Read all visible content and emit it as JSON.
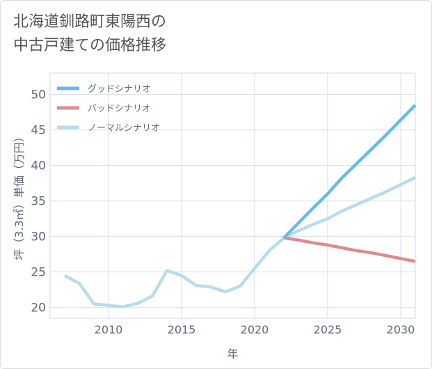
{
  "title": {
    "line1": "北海道釧路町東陽西の",
    "line2": "中古戸建ての価格推移"
  },
  "chart_data": {
    "type": "line",
    "xlabel": "年",
    "ylabel": "坪（3.3㎡）単価（万円）",
    "xlim": [
      2006,
      2031
    ],
    "ylim": [
      18.5,
      53
    ],
    "xticks": [
      2010,
      2015,
      2020,
      2025,
      2030
    ],
    "yticks": [
      20,
      25,
      30,
      35,
      40,
      45,
      50
    ],
    "grid": true,
    "legend_position": "top-left",
    "series": [
      {
        "name": "グッドシナリオ",
        "color": "#6bb8ea",
        "x": [
          2022,
          2023,
          2024,
          2025,
          2026,
          2027,
          2028,
          2029,
          2030,
          2031
        ],
        "y": [
          29.8,
          31.9,
          34.0,
          36.0,
          38.3,
          40.3,
          42.3,
          44.3,
          46.4,
          48.5
        ]
      },
      {
        "name": "バッドシナリオ",
        "color": "#dd8a92",
        "x": [
          2022,
          2023,
          2024,
          2025,
          2026,
          2027,
          2028,
          2029,
          2030,
          2031
        ],
        "y": [
          29.8,
          29.5,
          29.1,
          28.8,
          28.4,
          28.0,
          27.7,
          27.3,
          26.9,
          26.5
        ]
      },
      {
        "name": "ノーマルシナリオ",
        "color": "#b8dcec",
        "x": [
          2007,
          2008,
          2009,
          2010,
          2011,
          2012,
          2013,
          2014,
          2015,
          2016,
          2017,
          2018,
          2019,
          2020,
          2021,
          2022,
          2023,
          2024,
          2025,
          2026,
          2027,
          2028,
          2029,
          2030,
          2031
        ],
        "y": [
          24.5,
          23.4,
          20.5,
          20.3,
          20.1,
          20.6,
          21.6,
          25.2,
          24.5,
          23.1,
          22.9,
          22.2,
          23.0,
          25.5,
          28.0,
          29.8,
          30.8,
          31.7,
          32.5,
          33.6,
          34.5,
          35.4,
          36.3,
          37.3,
          38.3
        ]
      }
    ]
  }
}
